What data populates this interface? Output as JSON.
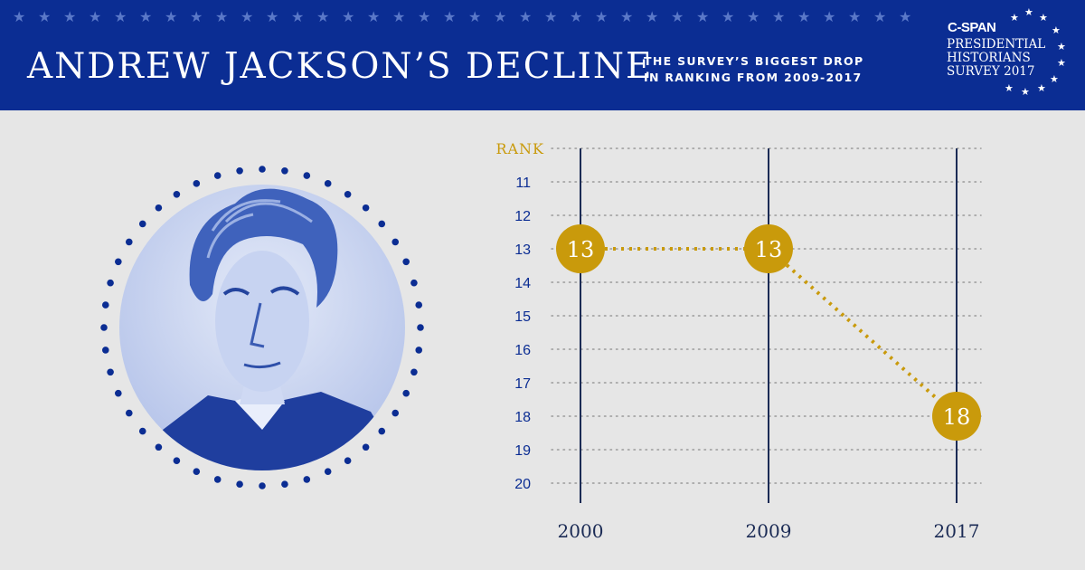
{
  "header": {
    "title": "ANDREW JACKSON’S DECLINE",
    "subtitle_lines": [
      "THE SURVEY’S BIGGEST DROP",
      "IN RANKING FROM 2009-2017"
    ],
    "star_count": 36
  },
  "logo": {
    "brand": "C-SPAN",
    "lines": [
      "PRESIDENTIAL",
      "HISTORIANS",
      "SURVEY 2017"
    ]
  },
  "colors": {
    "header_bg": "#0b2d93",
    "background": "#e6e6e6",
    "gold": "#c99a0b",
    "navy": "#0b2d93",
    "axis_line": "#1b2b55",
    "grid": "#9a9a9a"
  },
  "portrait": {
    "subject": "Andrew Jackson engraved portrait",
    "dot_ring": "navy dotted circle frame"
  },
  "chart_data": {
    "type": "line",
    "title": "ANDREW JACKSON’S DECLINE",
    "ylabel": "RANK",
    "xlabel": "",
    "x": [
      "2000",
      "2009",
      "2017"
    ],
    "y_ticks": [
      11,
      12,
      13,
      14,
      15,
      16,
      17,
      18,
      19,
      20
    ],
    "ylim": [
      10,
      20
    ],
    "y_inverted": true,
    "grid": "horizontal dotted",
    "series": [
      {
        "values": [
          13,
          13,
          18
        ],
        "labels": [
          "13",
          "13",
          "18"
        ],
        "color": "#c99a0b"
      }
    ]
  }
}
